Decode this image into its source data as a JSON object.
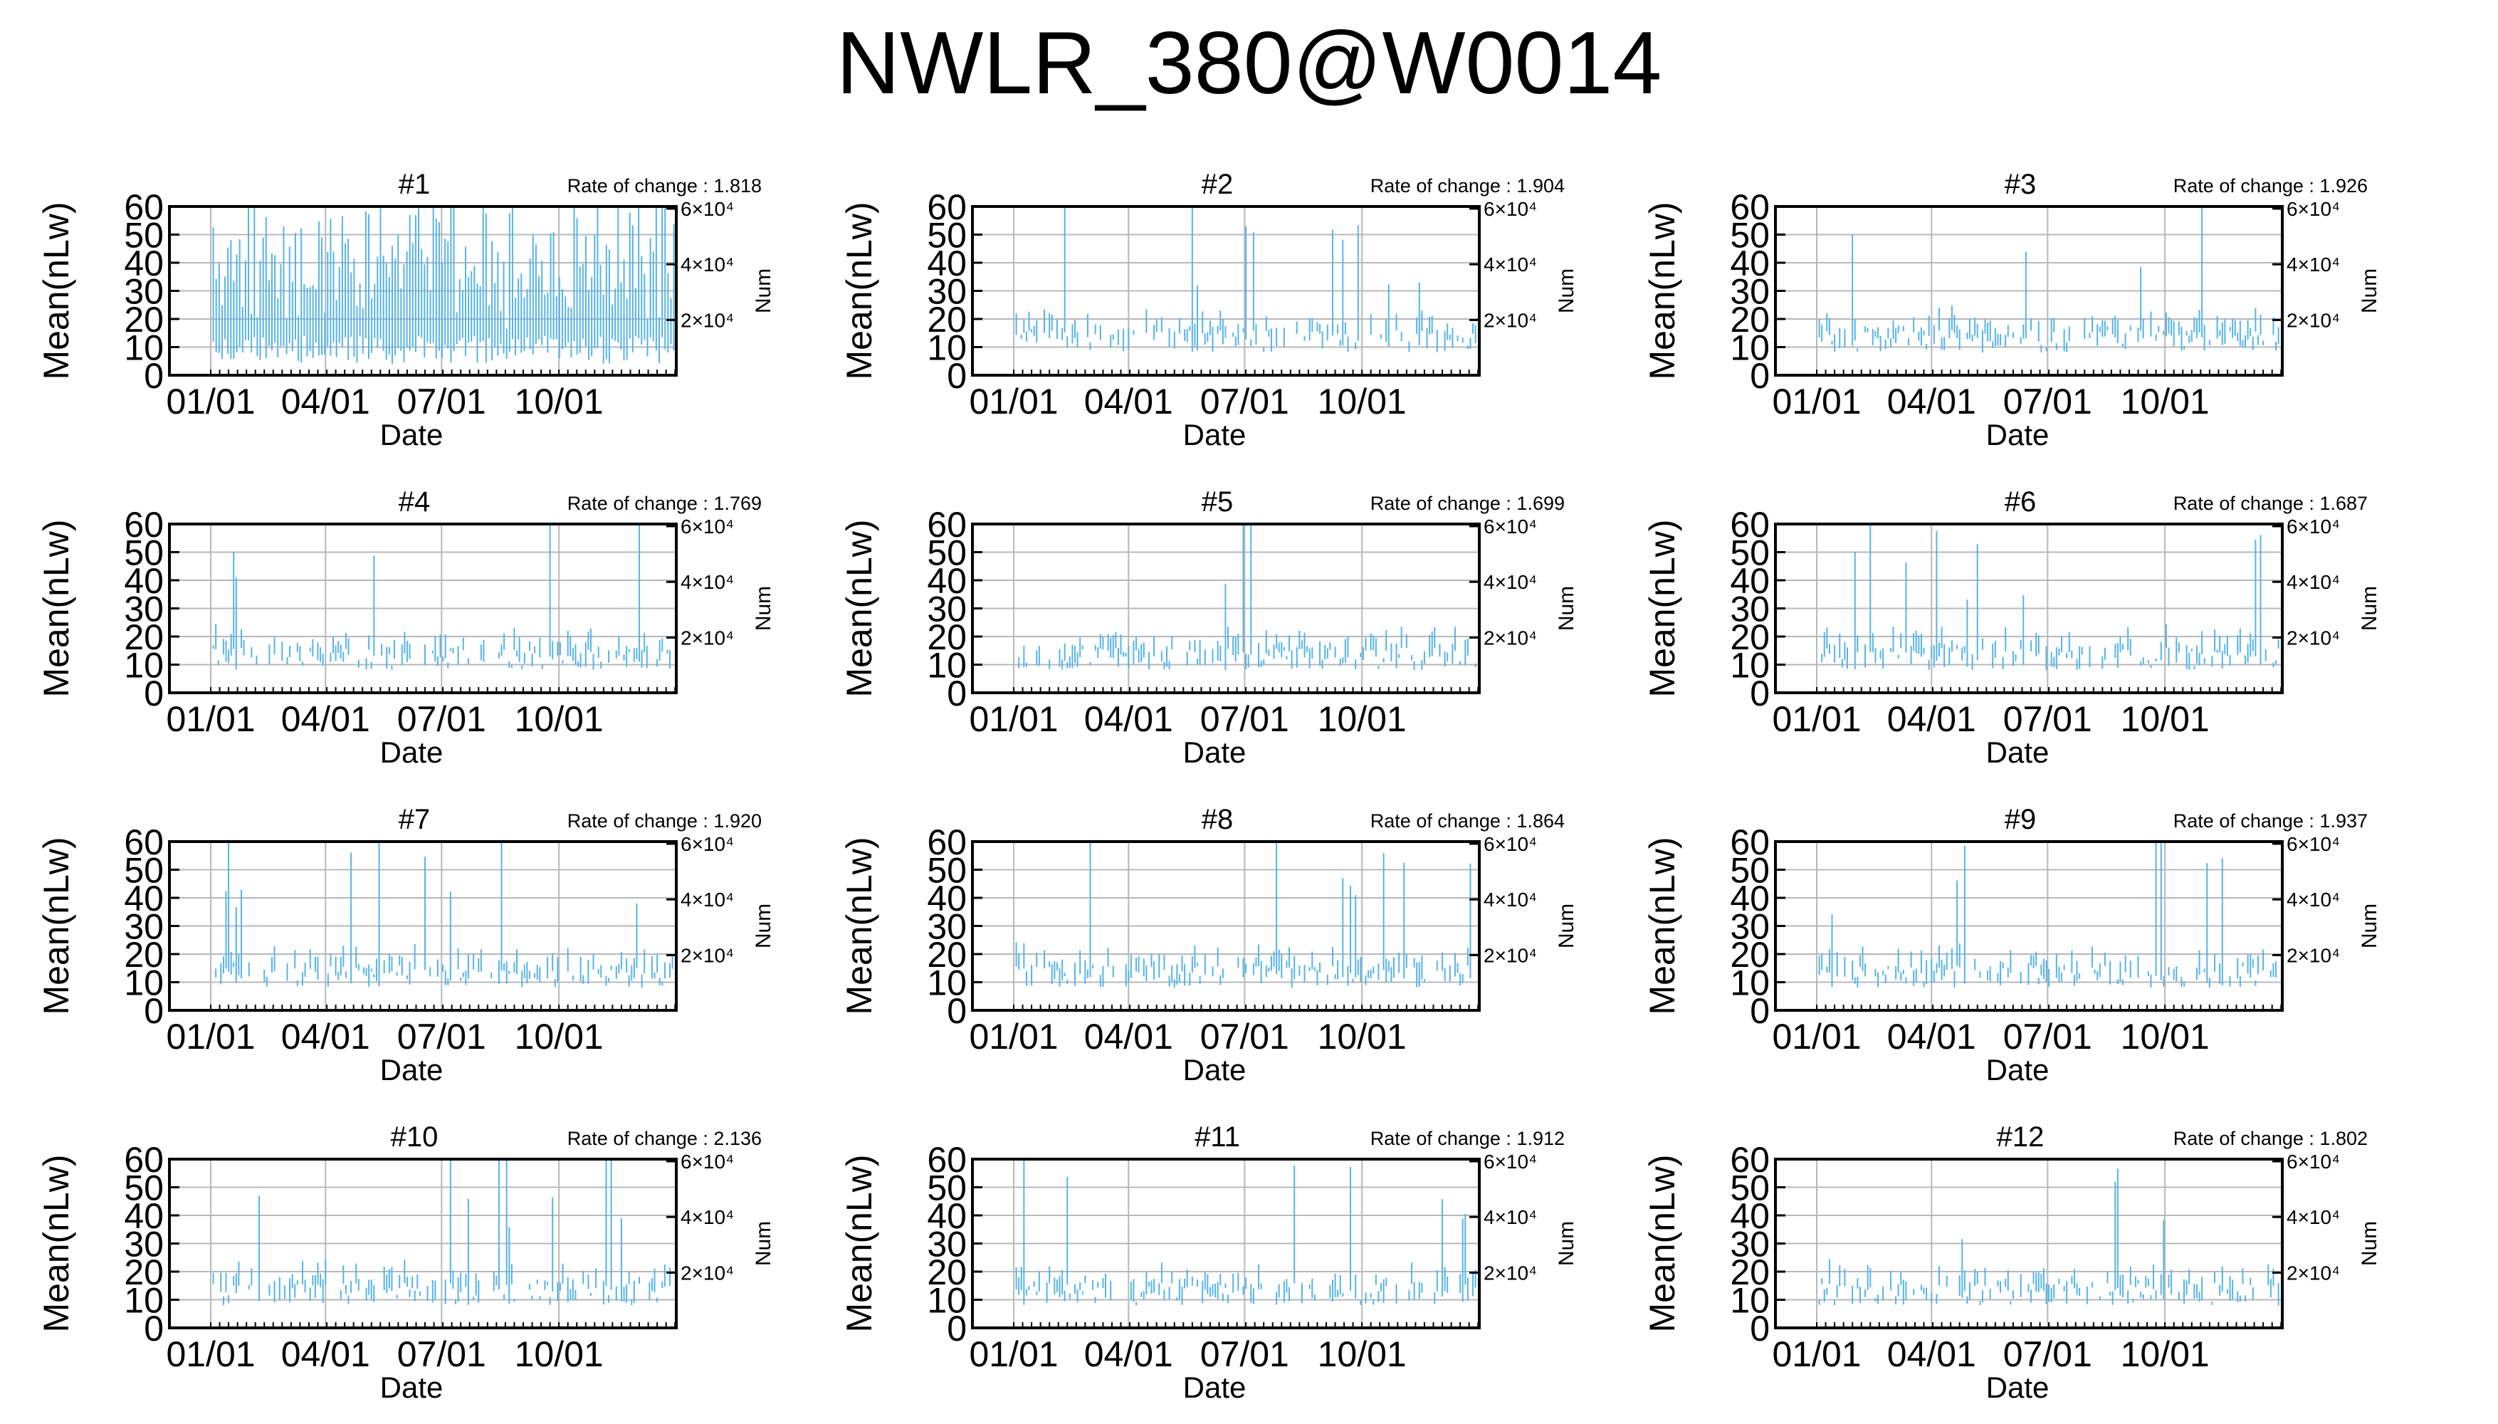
{
  "title": "NWLR_380@W0014",
  "colors": {
    "series": "#56b4e9",
    "grid": "#b8b8b8",
    "frame": "#000000"
  },
  "axes": {
    "xlabel": "Date",
    "ylabel": "Mean(nLw)",
    "y2label": "Num",
    "xticks": [
      "01/01",
      "04/01",
      "07/01",
      "10/01"
    ],
    "yticks": [
      "0",
      "10",
      "20",
      "30",
      "40",
      "50",
      "60"
    ],
    "y2ticks": [
      "2×10⁴",
      "4×10⁴",
      "6×10⁴"
    ],
    "ylim": [
      0,
      60
    ],
    "xlim_days": [
      0,
      365
    ],
    "rate_prefix": "Rate of change : "
  },
  "chart_data": [
    {
      "type": "line",
      "title": "#1",
      "rate_of_change": "1.818"
    },
    {
      "type": "line",
      "title": "#2",
      "rate_of_change": "1.904"
    },
    {
      "type": "line",
      "title": "#3",
      "rate_of_change": "1.926"
    },
    {
      "type": "line",
      "title": "#4",
      "rate_of_change": "1.769"
    },
    {
      "type": "line",
      "title": "#5",
      "rate_of_change": "1.699"
    },
    {
      "type": "line",
      "title": "#6",
      "rate_of_change": "1.687"
    },
    {
      "type": "line",
      "title": "#7",
      "rate_of_change": "1.920"
    },
    {
      "type": "line",
      "title": "#8",
      "rate_of_change": "1.864"
    },
    {
      "type": "line",
      "title": "#9",
      "rate_of_change": "1.937"
    },
    {
      "type": "line",
      "title": "#10",
      "rate_of_change": "2.136"
    },
    {
      "type": "line",
      "title": "#11",
      "rate_of_change": "1.912"
    },
    {
      "type": "line",
      "title": "#12",
      "rate_of_change": "1.802"
    }
  ]
}
